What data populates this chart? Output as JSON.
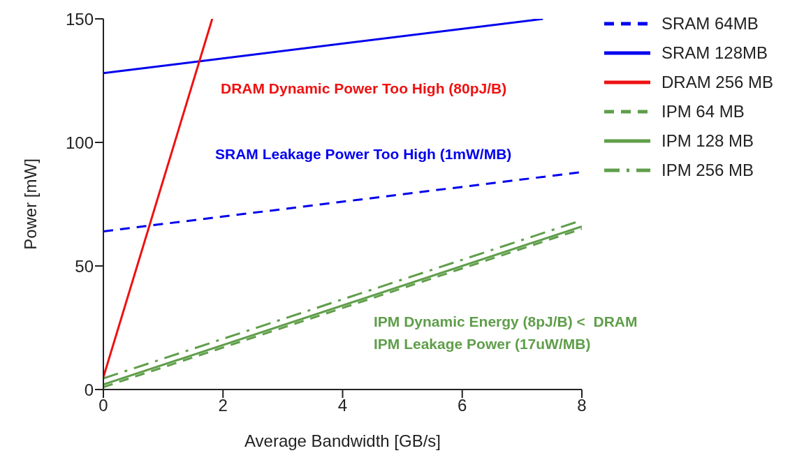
{
  "chart_data": {
    "type": "line",
    "xlabel": "Average Bandwidth [GB/s]",
    "ylabel": "Power [mW]",
    "xlim": [
      0,
      8
    ],
    "xticks": [
      0,
      2,
      4,
      6,
      8
    ],
    "ylim": [
      0,
      150
    ],
    "yticks": [
      0,
      50,
      100,
      150
    ],
    "grid": false,
    "legend": "top right",
    "marker": "none",
    "series": [
      {
        "name": "SRAM 64MB",
        "color": "#0000ee",
        "line_style": "dashed",
        "x": [
          0,
          8
        ],
        "values": [
          64,
          88
        ]
      },
      {
        "name": "SRAM 128MB",
        "color": "#0000ee",
        "line_style": "solid",
        "x": [
          0,
          7.35
        ],
        "values": [
          128,
          150
        ]
      },
      {
        "name": "DRAM 256 MB",
        "color": "#ee1111",
        "line_style": "solid",
        "x": [
          0,
          1.82
        ],
        "values": [
          5,
          150
        ]
      },
      {
        "name": "IPM 64 MB",
        "color": "#5f9e4a",
        "line_style": "dashed",
        "x": [
          0,
          8
        ],
        "values": [
          1,
          65
        ]
      },
      {
        "name": "IPM 128 MB",
        "color": "#5f9e4a",
        "line_style": "solid",
        "x": [
          0,
          8
        ],
        "values": [
          2,
          66
        ]
      },
      {
        "name": "IPM 256 MB",
        "color": "#5f9e4a",
        "line_style": "dashdot",
        "x": [
          0,
          8
        ],
        "values": [
          4.5,
          68.5
        ]
      }
    ],
    "annotations": [
      "DRAM Dynamic Power Too High (80pJ/B)",
      "SRAM Leakage Power Too High (1mW/MB)",
      "IPM Dynamic Energy (8pJ/B) <  DRAM",
      "IPM Leakage Power (17uW/MB)"
    ]
  }
}
